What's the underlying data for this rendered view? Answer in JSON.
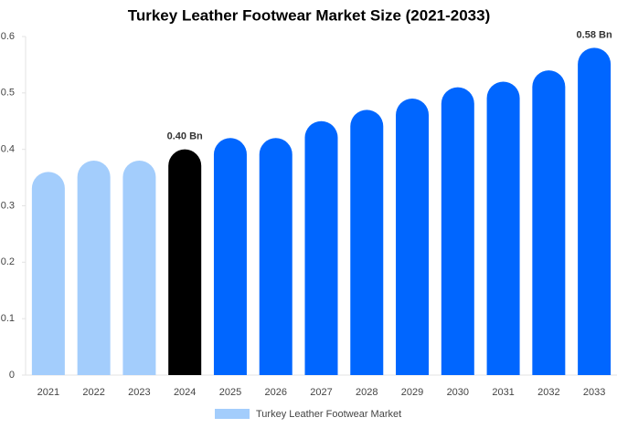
{
  "chart_data": {
    "type": "bar",
    "title": "Turkey Leather Footwear Market Size (2021-2033)",
    "categories": [
      "2021",
      "2022",
      "2023",
      "2024",
      "2025",
      "2026",
      "2027",
      "2028",
      "2029",
      "2030",
      "2031",
      "2032",
      "2033"
    ],
    "series": [
      {
        "name": "Turkey Leather Footwear Market",
        "color": "#a3cdfc",
        "values": [
          0.36,
          0.38,
          0.38,
          0.4,
          0.42,
          0.42,
          0.45,
          0.47,
          0.49,
          0.51,
          0.52,
          0.54,
          0.58
        ],
        "value_labels": [
          null,
          null,
          null,
          "0.40 Bn",
          null,
          null,
          null,
          null,
          null,
          null,
          null,
          null,
          "0.58 Bn"
        ],
        "colors": [
          "#a3cdfc",
          "#a3cdfc",
          "#a3cdfc",
          "#000000",
          "#0066ff",
          "#0066ff",
          "#0066ff",
          "#0066ff",
          "#0066ff",
          "#0066ff",
          "#0066ff",
          "#0066ff",
          "#0066ff"
        ]
      }
    ],
    "ylim": [
      0,
      0.6
    ],
    "yticks": [
      0,
      0.1,
      0.2,
      0.3,
      0.4,
      0.5,
      0.6
    ],
    "grid": false,
    "legend": "bottom"
  }
}
